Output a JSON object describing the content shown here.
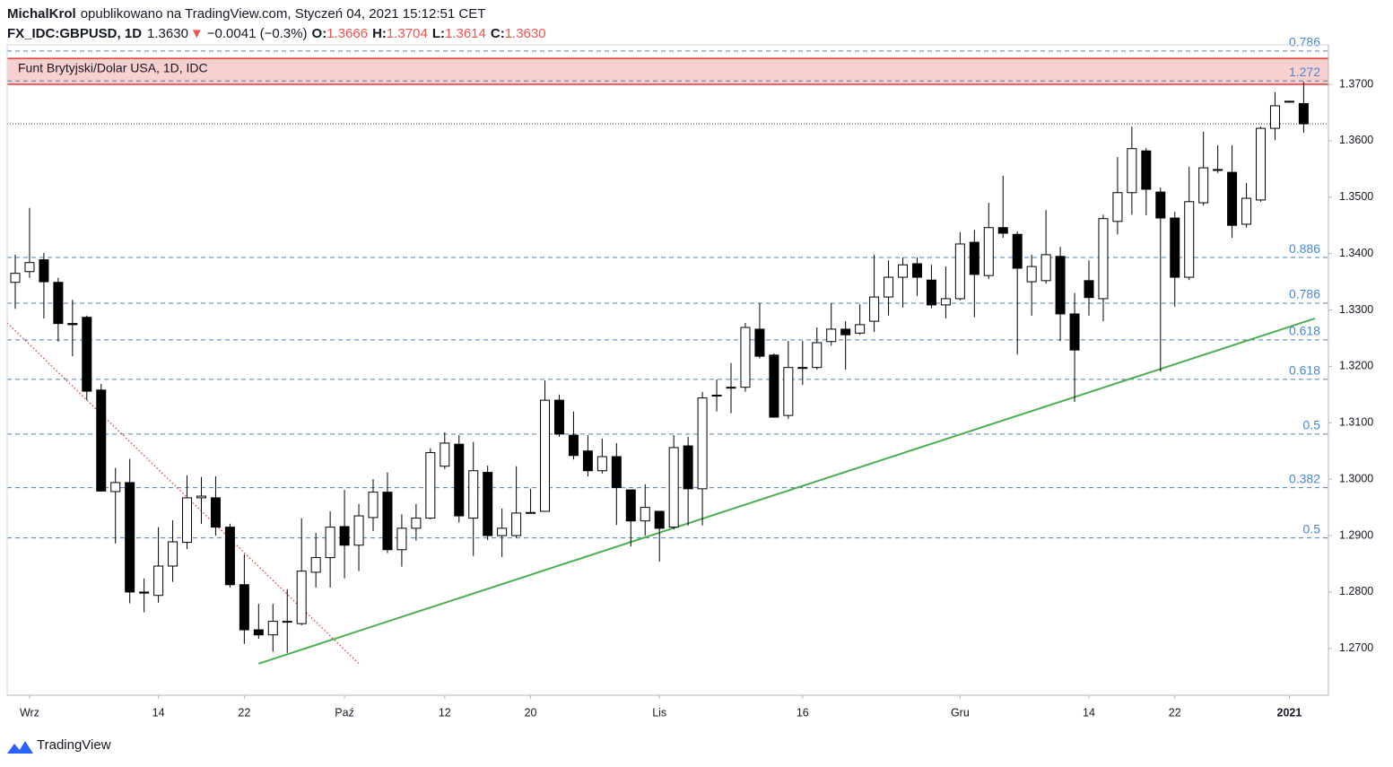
{
  "header": {
    "author": "MichalKrol",
    "published": "opublikowano na TradingView.com, Styczeń 04, 2021 15:12:51 CET",
    "symbol": "FX_IDC:GBPUSD, 1D",
    "last": "1.3630",
    "arrow": "▼",
    "change": "−0.0041 (−0.3%)",
    "o_label": "O:",
    "o": "1.3666",
    "h_label": "H:",
    "h": "1.3704",
    "l_label": "L:",
    "l": "1.3614",
    "c_label": "C:",
    "c": "1.3630"
  },
  "footer": {
    "brand": "TradingView"
  },
  "chart_data": {
    "type": "candlestick",
    "title": "Funt Brytyjski/Dolar USA, 1D, IDC",
    "categories": [
      null,
      "Wrz",
      null,
      null,
      null,
      null,
      null,
      null,
      null,
      null,
      "14",
      null,
      null,
      null,
      null,
      null,
      "22",
      null,
      null,
      null,
      null,
      null,
      null,
      "Paź",
      null,
      null,
      null,
      null,
      null,
      null,
      "12",
      null,
      null,
      null,
      null,
      null,
      "20",
      null,
      null,
      null,
      null,
      null,
      null,
      null,
      null,
      "Lis",
      null,
      null,
      null,
      null,
      null,
      null,
      null,
      null,
      null,
      "16",
      null,
      null,
      null,
      null,
      null,
      null,
      null,
      null,
      null,
      null,
      "Gru",
      null,
      null,
      null,
      null,
      null,
      null,
      null,
      null,
      "14",
      null,
      null,
      null,
      null,
      null,
      "22",
      null,
      null,
      null,
      null,
      null,
      null,
      null,
      "2021",
      null
    ],
    "open": [
      1.3349,
      1.3368,
      1.3389,
      1.3349,
      1.3276,
      1.3287,
      1.3158,
      1.2978,
      1.2994,
      1.28,
      1.2794,
      1.2846,
      1.2888,
      1.2967,
      1.2967,
      1.2915,
      1.2813,
      1.2733,
      1.2724,
      1.2747,
      1.2744,
      1.2835,
      1.2861,
      1.2916,
      1.2883,
      1.2932,
      1.2977,
      1.2875,
      1.2913,
      1.2931,
      1.3023,
      1.3062,
      1.2931,
      1.3012,
      1.29,
      1.29,
      1.294,
      1.2943,
      1.314,
      1.3078,
      1.305,
      1.3015,
      1.304,
      1.2981,
      1.2926,
      1.2943,
      1.2915,
      1.3059,
      1.2983,
      1.3148,
      1.3162,
      1.3163,
      1.3266,
      1.322,
      1.3113,
      1.3197,
      1.3198,
      1.3244,
      1.3266,
      1.3259,
      1.328,
      1.3323,
      1.3358,
      1.3382,
      1.3353,
      1.3309,
      1.332,
      1.342,
      1.3361,
      1.3446,
      1.3434,
      1.335,
      1.3352,
      1.3395,
      1.3293,
      1.3352,
      1.332,
      1.3457,
      1.3508,
      1.3582,
      1.3509,
      1.3463,
      1.3358,
      1.349,
      1.3548,
      1.3544,
      1.3452,
      1.3495,
      1.3622,
      1.3669,
      1.3666
    ],
    "high": [
      1.3398,
      1.3481,
      1.3401,
      1.3357,
      1.3318,
      1.329,
      1.3169,
      1.302,
      1.3036,
      1.2824,
      1.2915,
      1.2927,
      1.3007,
      1.3004,
      1.3005,
      1.2921,
      1.2867,
      1.2779,
      1.2779,
      1.2805,
      1.2931,
      1.2905,
      1.2943,
      1.2981,
      1.2956,
      1.3,
      1.3012,
      1.2938,
      1.2956,
      1.3055,
      1.3083,
      1.3078,
      1.3066,
      1.3024,
      1.2948,
      1.3023,
      1.2983,
      1.3175,
      1.315,
      1.312,
      1.3078,
      1.3072,
      1.3064,
      1.2981,
      1.2991,
      1.2943,
      1.3078,
      1.3075,
      1.3155,
      1.3177,
      1.3206,
      1.3277,
      1.3312,
      1.3223,
      1.3245,
      1.3245,
      1.3269,
      1.3312,
      1.328,
      1.331,
      1.3398,
      1.3388,
      1.3393,
      1.3393,
      1.338,
      1.3377,
      1.3438,
      1.3442,
      1.349,
      1.3538,
      1.3439,
      1.3398,
      1.3477,
      1.3412,
      1.333,
      1.3388,
      1.3469,
      1.3571,
      1.3625,
      1.3587,
      1.3517,
      1.3474,
      1.3554,
      1.3616,
      1.3592,
      1.3592,
      1.3525,
      1.3625,
      1.3686,
      1.3671,
      1.3704
    ],
    "low": [
      1.3302,
      1.3357,
      1.3285,
      1.3244,
      1.3218,
      1.314,
      1.2978,
      1.2886,
      1.278,
      1.2764,
      1.2781,
      1.2818,
      1.2876,
      1.2921,
      1.29,
      1.2808,
      1.2708,
      1.2717,
      1.2694,
      1.2692,
      1.2741,
      1.2808,
      1.2808,
      1.2824,
      1.2837,
      1.2908,
      1.2869,
      1.2845,
      1.2891,
      1.2929,
      1.3018,
      1.2923,
      1.2864,
      1.2892,
      1.2862,
      1.2896,
      1.2939,
      1.2942,
      1.3075,
      1.3035,
      1.3005,
      1.301,
      1.2919,
      1.2881,
      1.29,
      1.2854,
      1.2911,
      1.2918,
      1.2918,
      1.312,
      1.3117,
      1.3155,
      1.3214,
      1.3109,
      1.3107,
      1.3167,
      1.3194,
      1.3237,
      1.3194,
      1.3256,
      1.3261,
      1.329,
      1.3304,
      1.3325,
      1.3303,
      1.3285,
      1.3317,
      1.3287,
      1.3355,
      1.3428,
      1.3221,
      1.329,
      1.3347,
      1.3245,
      1.3137,
      1.329,
      1.328,
      1.3434,
      1.3469,
      1.3468,
      1.3191,
      1.3306,
      1.3353,
      1.3485,
      1.3543,
      1.3428,
      1.3446,
      1.3492,
      1.3601,
      1.3668,
      1.3614
    ],
    "close": [
      1.3365,
      1.3384,
      1.335,
      1.3276,
      1.3274,
      1.3156,
      1.2979,
      1.2994,
      1.28,
      1.2798,
      1.2846,
      1.2889,
      1.2967,
      1.297,
      1.2915,
      1.2813,
      1.2733,
      1.2724,
      1.2748,
      1.2748,
      1.2837,
      1.2861,
      1.2915,
      1.2883,
      1.2935,
      1.2977,
      1.2875,
      1.2913,
      1.2931,
      1.3047,
      1.3064,
      1.2935,
      1.3015,
      1.29,
      1.2913,
      1.294,
      1.2941,
      1.314,
      1.308,
      1.3042,
      1.3015,
      1.304,
      1.2985,
      1.2926,
      1.295,
      1.2913,
      1.3056,
      1.2983,
      1.3144,
      1.3149,
      1.3163,
      1.3269,
      1.3218,
      1.311,
      1.3198,
      1.3198,
      1.3242,
      1.3266,
      1.3256,
      1.3274,
      1.3323,
      1.3358,
      1.338,
      1.3358,
      1.3309,
      1.332,
      1.3417,
      1.3363,
      1.3446,
      1.3436,
      1.3374,
      1.3377,
      1.3398,
      1.3293,
      1.3229,
      1.3322,
      1.3462,
      1.3508,
      1.3586,
      1.3514,
      1.3463,
      1.3358,
      1.3492,
      1.3552,
      1.3549,
      1.345,
      1.3498,
      1.3622,
      1.3662,
      1.367,
      1.363
    ],
    "up_color": "#ffffff",
    "down_color": "#000000",
    "ylim": [
      1.2617,
      1.377
    ],
    "yticks": [
      {
        "value": 1.27,
        "label": "1.2700"
      },
      {
        "value": 1.28,
        "label": "1.2800"
      },
      {
        "value": 1.29,
        "label": "1.2900"
      },
      {
        "value": 1.3,
        "label": "1.3000"
      },
      {
        "value": 1.31,
        "label": "1.3100"
      },
      {
        "value": 1.32,
        "label": "1.3200"
      },
      {
        "value": 1.33,
        "label": "1.3300"
      },
      {
        "value": 1.34,
        "label": "1.3400"
      },
      {
        "value": 1.35,
        "label": "1.3500"
      },
      {
        "value": 1.36,
        "label": "1.3600"
      },
      {
        "value": 1.37,
        "label": "1.3700"
      }
    ],
    "levels": [
      {
        "label": "0.786",
        "value": 1.3759
      },
      {
        "label": "1.272",
        "value": 1.3706
      },
      {
        "label": "0.886",
        "value": 1.3393
      },
      {
        "label": "0.786",
        "value": 1.3312
      },
      {
        "label": "0.618",
        "value": 1.3247
      },
      {
        "label": "0.618",
        "value": 1.3177
      },
      {
        "label": "0.5",
        "value": 1.308
      },
      {
        "label": "0.382",
        "value": 1.2985
      },
      {
        "label": "0.5",
        "value": 1.2896
      }
    ],
    "level_color": "#4a7fb8",
    "zone": {
      "from": 1.37,
      "to": 1.3746,
      "color": "#f8d0d0",
      "edge_color": "#e53935"
    },
    "last_price_line": 1.363,
    "trendlines": [
      {
        "color": "#4caf50",
        "style": "solid",
        "x": [
          17,
          90.8
        ],
        "y": [
          1.2673,
          1.3285
        ]
      },
      {
        "color": "#e53935",
        "style": "dotted",
        "x": [
          -0.56,
          24
        ],
        "y": [
          1.3277,
          1.2673
        ]
      }
    ]
  }
}
